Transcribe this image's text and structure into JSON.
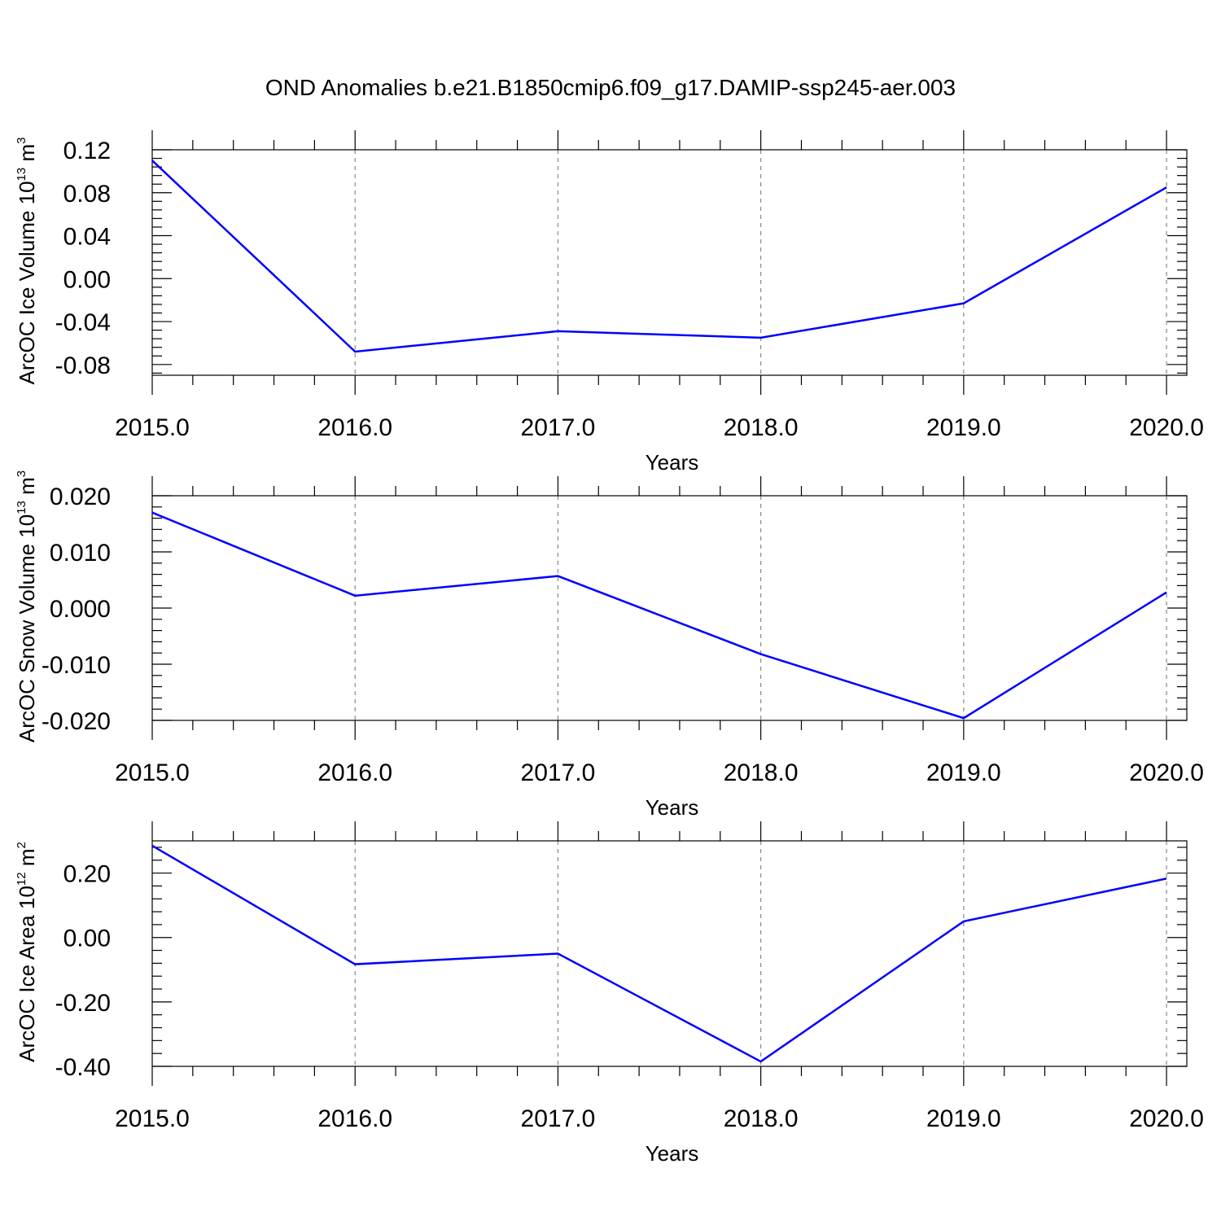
{
  "title": "OND Anomalies b.e21.B1850cmip6.f09_g17.DAMIP-ssp245-aer.003",
  "chart_data": [
    {
      "type": "line",
      "ylabel_main": "ArcOC Ice Volume 10",
      "ylabel_exp": "13",
      "ylabel_unit": " m",
      "ylabel_unit_exp": "3",
      "xlabel": "Years",
      "x": [
        2015,
        2016,
        2017,
        2018,
        2019,
        2020
      ],
      "xlim": [
        2015,
        2020.1
      ],
      "x_tick_labels": [
        "2015.0",
        "2016.0",
        "2017.0",
        "2018.0",
        "2019.0",
        "2020.0"
      ],
      "ylim": [
        -0.09,
        0.12
      ],
      "y_ticks": [
        0.12,
        0.08,
        0.04,
        0.0,
        -0.04,
        -0.08
      ],
      "y_tick_labels": [
        "0.12",
        "0.08",
        "0.04",
        "0.00",
        "-0.04",
        "-0.08"
      ],
      "series": [
        {
          "values": [
            0.11,
            -0.068,
            -0.049,
            -0.055,
            -0.023,
            0.085
          ]
        }
      ],
      "color": "#0000ff",
      "grid": "vertical dashed"
    },
    {
      "type": "line",
      "ylabel_main": "ArcOC Snow Volume 10",
      "ylabel_exp": "13",
      "ylabel_unit": " m",
      "ylabel_unit_exp": "3",
      "xlabel": "Years",
      "x": [
        2015,
        2016,
        2017,
        2018,
        2019,
        2020
      ],
      "xlim": [
        2015,
        2020.1
      ],
      "x_tick_labels": [
        "2015.0",
        "2016.0",
        "2017.0",
        "2018.0",
        "2019.0",
        "2020.0"
      ],
      "ylim": [
        -0.02,
        0.02
      ],
      "y_ticks": [
        0.02,
        0.01,
        0.0,
        -0.01,
        -0.02
      ],
      "y_tick_labels": [
        "0.020",
        "0.010",
        "0.000",
        "-0.010",
        "-0.020"
      ],
      "series": [
        {
          "values": [
            0.017,
            0.0022,
            0.0057,
            -0.0082,
            -0.0196,
            0.0028
          ]
        }
      ],
      "color": "#0000ff",
      "grid": "vertical dashed"
    },
    {
      "type": "line",
      "ylabel_main": "ArcOC Ice Area 10",
      "ylabel_exp": "12",
      "ylabel_unit": " m",
      "ylabel_unit_exp": "2",
      "xlabel": "Years",
      "x": [
        2015,
        2016,
        2017,
        2018,
        2019,
        2020
      ],
      "xlim": [
        2015,
        2020.1
      ],
      "x_tick_labels": [
        "2015.0",
        "2016.0",
        "2017.0",
        "2018.0",
        "2019.0",
        "2020.0"
      ],
      "ylim": [
        -0.4,
        0.3
      ],
      "y_ticks": [
        0.2,
        0.0,
        -0.2,
        -0.4
      ],
      "y_tick_labels": [
        "0.20",
        "0.00",
        "-0.20",
        "-0.40"
      ],
      "series": [
        {
          "values": [
            0.285,
            -0.083,
            -0.05,
            -0.385,
            0.05,
            0.183
          ]
        }
      ],
      "color": "#0000ff",
      "grid": "vertical dashed"
    }
  ]
}
